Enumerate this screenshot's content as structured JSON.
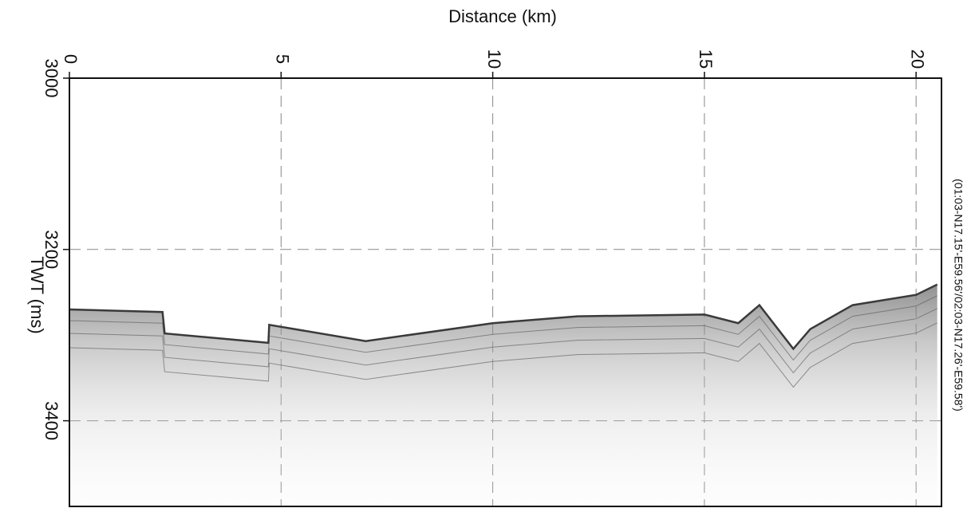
{
  "chart_data": {
    "type": "line",
    "xlabel": "Distance (km)",
    "ylabel": "TWT (ms)",
    "side_label": "(01:03-N17.15'-E59.56'/02:03-N17.26'-E59.58')",
    "x": [
      0,
      2.2,
      2.25,
      4.7,
      4.72,
      7,
      10,
      12,
      15,
      15.8,
      16.3,
      17.1,
      17.5,
      18.5,
      20,
      20.5
    ],
    "values": [
      3270,
      3273,
      3298,
      3309,
      3288,
      3307,
      3286,
      3278,
      3276,
      3286,
      3265,
      3316,
      3293,
      3265,
      3253,
      3241
    ],
    "color": "#3a3a3a",
    "xlim": [
      0,
      20.6
    ],
    "xticks": [
      0,
      5,
      10,
      15,
      20
    ],
    "ylim": [
      3000,
      3500
    ],
    "yticks": [
      3000,
      3200,
      3400
    ],
    "y_inverted": true,
    "grid": true
  }
}
